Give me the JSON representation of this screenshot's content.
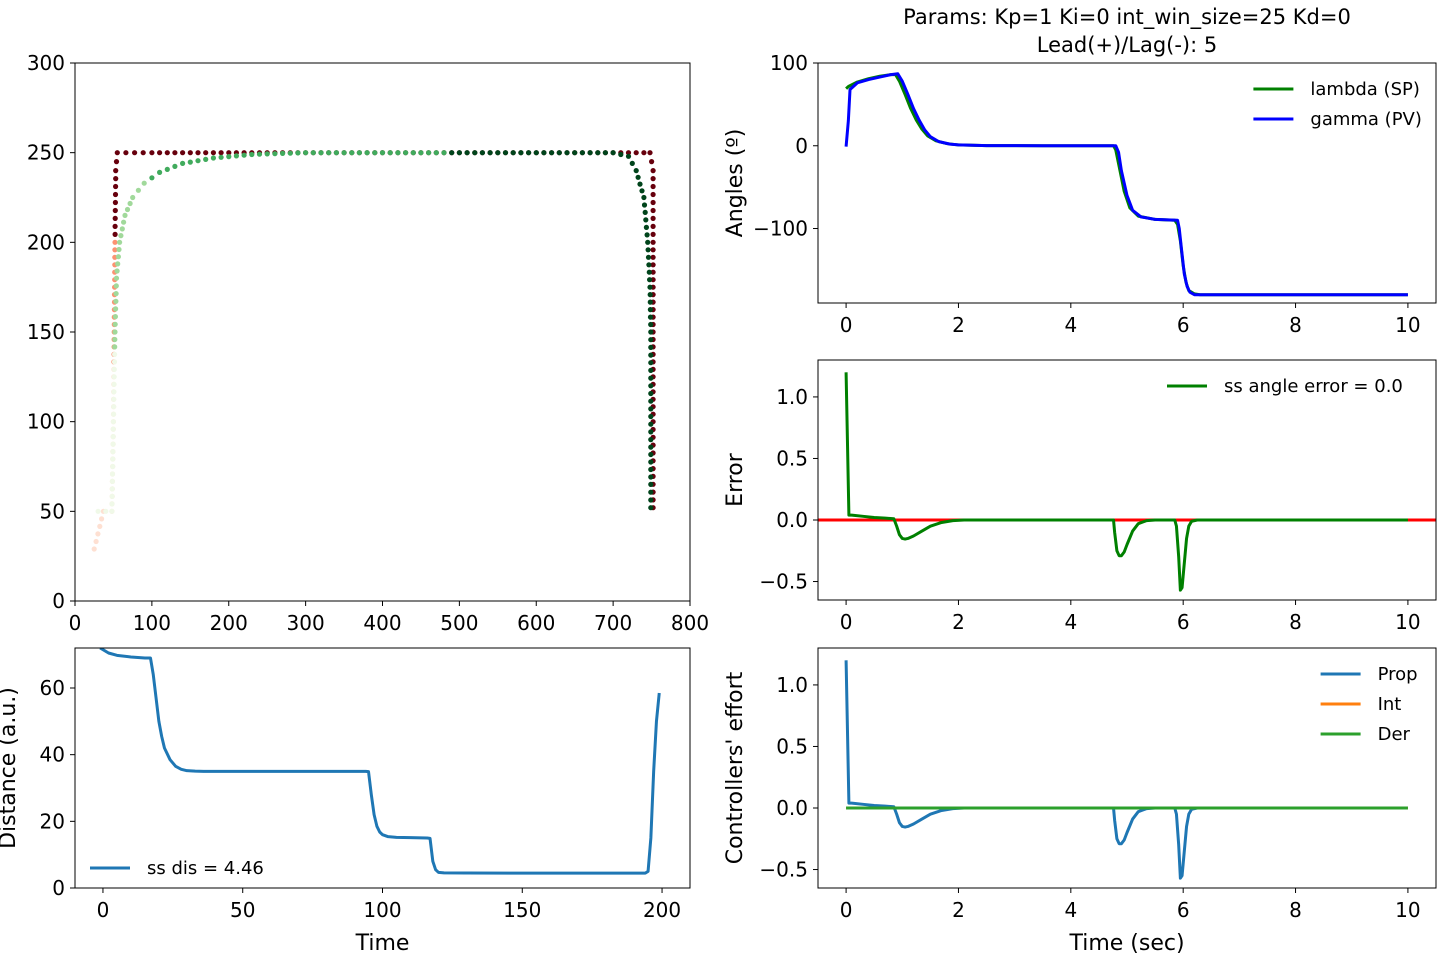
{
  "figure": {
    "title_line1": "Params: Kp=1 Ki=0 int_win_size=25 Kd=0",
    "title_line2": "Lead(+)/Lag(-): 5"
  },
  "chart_data": [
    {
      "id": "trajectory",
      "type": "scatter",
      "xlim": [
        0,
        800
      ],
      "ylim": [
        0,
        300
      ],
      "xticks": [
        "0",
        "100",
        "200",
        "300",
        "400",
        "500",
        "600",
        "700",
        "800"
      ],
      "yticks": [
        "0",
        "50",
        "100",
        "150",
        "200",
        "250",
        "300"
      ],
      "grid": false,
      "series": [
        {
          "role": "target path",
          "colors": [
            "#fee0d2",
            "#fc9272",
            "#a50f15",
            "#67000d"
          ],
          "x": [
            25,
            37,
            48,
            50,
            51,
            52,
            53,
            55,
            100,
            200,
            300,
            400,
            500,
            600,
            700,
            710,
            720,
            730,
            740,
            748,
            752,
            752,
            752,
            752,
            752
          ],
          "y": [
            29,
            50,
            50,
            100,
            150,
            200,
            240,
            250,
            250,
            250,
            250,
            250,
            250,
            250,
            250,
            250,
            250,
            250,
            250,
            250,
            240,
            200,
            150,
            100,
            52
          ]
        },
        {
          "role": "actual path",
          "colors": [
            "#f0f9e8",
            "#a1d99b",
            "#41ab5d",
            "#00441b"
          ],
          "x": [
            30,
            40,
            48,
            50,
            52,
            54,
            58,
            65,
            75,
            90,
            110,
            140,
            180,
            230,
            300,
            400,
            500,
            600,
            700,
            720,
            730,
            740,
            745,
            748,
            749,
            749,
            749,
            749,
            749
          ],
          "y": [
            50,
            50,
            50,
            100,
            150,
            180,
            200,
            215,
            225,
            233,
            239,
            244,
            247,
            249,
            250,
            250,
            250,
            250,
            250,
            248,
            240,
            225,
            200,
            175,
            150,
            120,
            90,
            65,
            52
          ]
        }
      ]
    },
    {
      "id": "distance",
      "type": "line",
      "xlabel": "Time",
      "ylabel": "Distance (a.u.)",
      "xlim": [
        -10,
        210
      ],
      "ylim": [
        0,
        72
      ],
      "xticks": [
        0,
        50,
        100,
        150,
        200
      ],
      "yticks": [
        0,
        20,
        40,
        60
      ],
      "grid": false,
      "legend": "lower-left",
      "series": [
        {
          "name": "ss dis = 4.46",
          "color": "#1f77b4",
          "x": [
            -1,
            2,
            5,
            10,
            15,
            17,
            18,
            19,
            20,
            21,
            22,
            24,
            26,
            28,
            30,
            33,
            36,
            40,
            60,
            80,
            94,
            95,
            96,
            97,
            98,
            99,
            100,
            102,
            105,
            110,
            116,
            117,
            118,
            119,
            120,
            122,
            130,
            150,
            170,
            190,
            194,
            195,
            196,
            197,
            198,
            199
          ],
          "y": [
            72,
            70.5,
            69.8,
            69.3,
            69,
            69,
            64,
            57,
            50,
            45.5,
            42,
            38.5,
            36.5,
            35.6,
            35.2,
            35.05,
            35,
            35,
            35,
            35,
            35,
            34.9,
            28,
            22,
            18.5,
            16.8,
            16,
            15.4,
            15.2,
            15.1,
            15,
            14.9,
            8,
            5.5,
            4.7,
            4.55,
            4.5,
            4.46,
            4.46,
            4.46,
            4.46,
            5,
            15,
            35,
            50,
            58.5
          ]
        }
      ]
    },
    {
      "id": "angles",
      "type": "line",
      "ylabel": "Angles (º)",
      "xlim": [
        -0.5,
        10.5
      ],
      "ylim": [
        -190,
        100
      ],
      "xticks": [
        0,
        2,
        4,
        6,
        8,
        10
      ],
      "yticks": [
        100,
        0,
        -100
      ],
      "ytick_labels": [
        "100",
        "0",
        "−100"
      ],
      "grid": false,
      "legend": "top-right",
      "series": [
        {
          "name": "lambda (SP)",
          "color": "#008000",
          "x": [
            0,
            0.05,
            0.2,
            0.4,
            0.6,
            0.8,
            0.88,
            0.95,
            1.05,
            1.15,
            1.25,
            1.35,
            1.45,
            1.6,
            1.8,
            2.0,
            2.5,
            3.5,
            4.5,
            4.76,
            4.8,
            4.86,
            4.95,
            5.05,
            5.2,
            5.5,
            5.85,
            5.9,
            5.95,
            6.0,
            6.05,
            6.1,
            6.2,
            6.3,
            6.5,
            8,
            10
          ],
          "y": [
            69,
            72,
            77,
            81,
            84,
            86,
            86,
            78,
            62,
            45,
            31,
            20,
            12,
            6,
            2.5,
            1,
            0.2,
            0,
            0,
            0,
            -5,
            -25,
            -55,
            -75,
            -85,
            -89,
            -90,
            -95,
            -115,
            -145,
            -165,
            -175,
            -179,
            -180,
            -180,
            -180,
            -180
          ]
        },
        {
          "name": "gamma (PV)",
          "color": "#0000ff",
          "x": [
            0,
            0.04,
            0.07,
            0.2,
            0.4,
            0.6,
            0.8,
            0.92,
            1.0,
            1.1,
            1.2,
            1.3,
            1.4,
            1.5,
            1.65,
            1.85,
            2.0,
            2.5,
            3.5,
            4.5,
            4.8,
            4.85,
            4.9,
            5.0,
            5.1,
            5.25,
            5.5,
            5.9,
            5.93,
            5.97,
            6.02,
            6.07,
            6.12,
            6.2,
            6.3,
            6.5,
            8,
            10
          ],
          "y": [
            -1,
            30,
            68,
            76,
            80,
            83,
            86,
            87,
            78,
            62,
            45,
            31,
            19,
            11,
            5,
            2,
            1,
            0.2,
            0,
            0,
            0,
            -8,
            -30,
            -60,
            -78,
            -86,
            -89,
            -90,
            -100,
            -125,
            -155,
            -170,
            -177,
            -180,
            -180,
            -180,
            -180,
            -180
          ]
        }
      ]
    },
    {
      "id": "error",
      "type": "line",
      "ylabel": "Error",
      "xlim": [
        -0.5,
        10.5
      ],
      "ylim": [
        -0.65,
        1.3
      ],
      "xticks": [
        0,
        2,
        4,
        6,
        8,
        10
      ],
      "yticks": [
        1.0,
        0.5,
        0.0,
        -0.5
      ],
      "ytick_labels": [
        "1.0",
        "0.5",
        "0.0",
        "−0.5"
      ],
      "grid": false,
      "legend": "top-right",
      "reference_line": {
        "y": 0,
        "color": "#ff0000"
      },
      "series": [
        {
          "name": "ss angle error = 0.0",
          "color": "#008000",
          "x": [
            0,
            0.05,
            0.1,
            0.3,
            0.5,
            0.7,
            0.85,
            0.9,
            0.95,
            1.0,
            1.05,
            1.1,
            1.2,
            1.35,
            1.5,
            1.7,
            1.9,
            2.1,
            3.0,
            4.0,
            4.76,
            4.78,
            4.82,
            4.86,
            4.9,
            4.95,
            5.0,
            5.1,
            5.2,
            5.35,
            5.5,
            5.7,
            5.85,
            5.88,
            5.92,
            5.95,
            5.98,
            6.02,
            6.06,
            6.1,
            6.15,
            6.25,
            7,
            8,
            10
          ],
          "y": [
            1.2,
            0.04,
            0.04,
            0.03,
            0.02,
            0.015,
            0.01,
            -0.05,
            -0.12,
            -0.15,
            -0.155,
            -0.15,
            -0.13,
            -0.09,
            -0.05,
            -0.02,
            -0.005,
            0,
            0,
            0,
            0,
            -0.1,
            -0.25,
            -0.29,
            -0.29,
            -0.26,
            -0.2,
            -0.09,
            -0.03,
            -0.005,
            0,
            0,
            0,
            -0.05,
            -0.3,
            -0.57,
            -0.55,
            -0.35,
            -0.15,
            -0.05,
            -0.01,
            0,
            0,
            0,
            0
          ]
        }
      ]
    },
    {
      "id": "effort",
      "type": "line",
      "xlabel": "Time (sec)",
      "ylabel": "Controllers' effort",
      "xlim": [
        -0.5,
        10.5
      ],
      "ylim": [
        -0.65,
        1.3
      ],
      "xticks": [
        0,
        2,
        4,
        6,
        8,
        10
      ],
      "yticks": [
        1.0,
        0.5,
        0.0,
        -0.5
      ],
      "ytick_labels": [
        "1.0",
        "0.5",
        "0.0",
        "−0.5"
      ],
      "grid": false,
      "legend": "top-right",
      "series": [
        {
          "name": "Prop",
          "color": "#1f77b4",
          "x": [
            0,
            0.05,
            0.1,
            0.3,
            0.5,
            0.7,
            0.85,
            0.9,
            0.95,
            1.0,
            1.05,
            1.1,
            1.2,
            1.35,
            1.5,
            1.7,
            1.9,
            2.1,
            3.0,
            4.0,
            4.76,
            4.78,
            4.82,
            4.86,
            4.9,
            4.95,
            5.0,
            5.1,
            5.2,
            5.35,
            5.5,
            5.7,
            5.85,
            5.88,
            5.92,
            5.95,
            5.98,
            6.02,
            6.06,
            6.1,
            6.15,
            6.25,
            7,
            8,
            10
          ],
          "y": [
            1.2,
            0.04,
            0.04,
            0.03,
            0.02,
            0.015,
            0.01,
            -0.05,
            -0.12,
            -0.15,
            -0.155,
            -0.15,
            -0.13,
            -0.09,
            -0.05,
            -0.02,
            -0.005,
            0,
            0,
            0,
            0,
            -0.1,
            -0.25,
            -0.29,
            -0.29,
            -0.26,
            -0.2,
            -0.09,
            -0.03,
            -0.005,
            0,
            0,
            0,
            -0.05,
            -0.3,
            -0.57,
            -0.55,
            -0.35,
            -0.15,
            -0.05,
            -0.01,
            0,
            0,
            0,
            0
          ]
        },
        {
          "name": "Int",
          "color": "#ff7f0e",
          "x": [
            0,
            10
          ],
          "y": [
            0,
            0
          ]
        },
        {
          "name": "Der",
          "color": "#2ca02c",
          "x": [
            0,
            10
          ],
          "y": [
            0,
            0
          ]
        }
      ]
    }
  ]
}
